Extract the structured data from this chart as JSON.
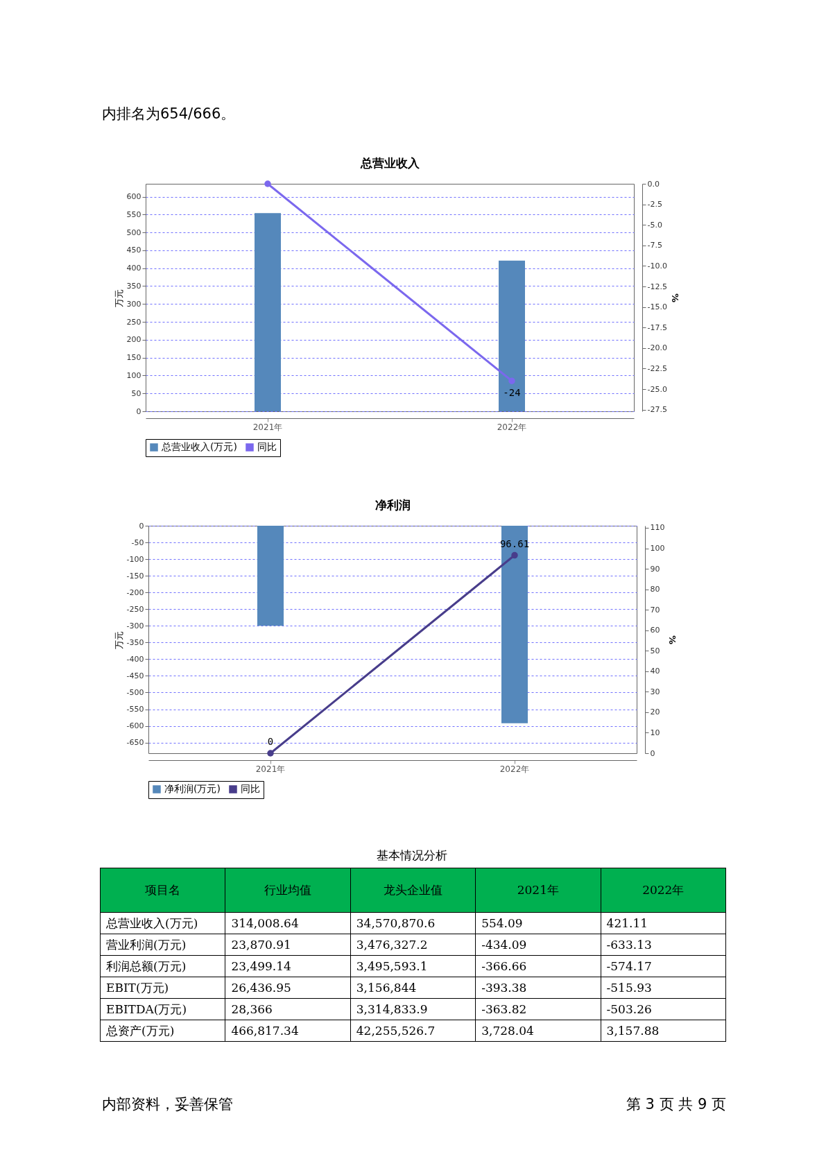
{
  "chart_data": [
    {
      "type": "bar",
      "title": "总营业收入",
      "ylabel": "万元",
      "y2label": "%",
      "categories": [
        "2021年",
        "2022年"
      ],
      "series": [
        {
          "name": "总营业收入(万元)",
          "type": "bar",
          "color": "#5588bb",
          "values": [
            554.09,
            421.11
          ]
        },
        {
          "name": "同比",
          "type": "line",
          "axis": "y2",
          "color": "#7b68ee",
          "values": [
            0,
            -24
          ],
          "value_labels": [
            null,
            "-24"
          ]
        }
      ],
      "ylim": [
        0,
        636
      ],
      "yticks": [
        0,
        50,
        100,
        150,
        200,
        250,
        300,
        350,
        400,
        450,
        500,
        550,
        600
      ],
      "y2lim": [
        -27.7,
        0
      ],
      "y2ticks": [
        {
          "value": 0,
          "label": "0.0"
        },
        -2.5,
        {
          "value": -5,
          "label": "-5.0"
        },
        -7.5,
        {
          "value": -10,
          "label": "-10.0"
        },
        -12.5,
        {
          "value": -15,
          "label": "-15.0"
        },
        -17.5,
        {
          "value": -20,
          "label": "-20.0"
        },
        -22.5,
        {
          "value": -25,
          "label": "-25.0"
        },
        -27.5
      ],
      "grid": "y",
      "legend": "bottom",
      "marker": "circle",
      "annotations": [
        "内排名为654/666。"
      ]
    },
    {
      "type": "bar",
      "title": "净利润",
      "ylabel": "万元",
      "y2label": "%",
      "categories": [
        "2021年",
        "2022年"
      ],
      "series": [
        {
          "name": "净利润(万元)",
          "type": "bar",
          "color": "#5588bb",
          "values": [
            -300,
            -592
          ]
        },
        {
          "name": "同比",
          "type": "line",
          "axis": "y2",
          "color": "#483d8b",
          "values": [
            0,
            96.61
          ],
          "value_labels": [
            "0",
            "96.61"
          ]
        }
      ],
      "ylim": [
        -682,
        0
      ],
      "yticks": [
        0,
        -50,
        -100,
        -150,
        -200,
        -250,
        -300,
        -350,
        -400,
        -450,
        -500,
        -550,
        -600,
        -650
      ],
      "y2lim": [
        0,
        111
      ],
      "y2ticks": [
        0,
        10,
        20,
        30,
        40,
        50,
        60,
        70,
        80,
        90,
        100,
        110
      ],
      "grid": "y",
      "legend": "bottom",
      "marker": "circle"
    },
    {
      "type": "other",
      "title": "基本情况分析",
      "categories": [
        "项目名",
        "行业均值",
        "龙头企业值",
        "2021年",
        "2022年"
      ],
      "y_categories": [
        "总营业收入(万元)",
        "营业利润(万元)",
        "利润总额(万元)",
        "EBIT(万元)",
        "EBITDA(万元)",
        "总资产(万元)"
      ],
      "cell_labels": [
        [
          "314,008.64",
          "34,570,870.6",
          "554.09",
          "421.11"
        ],
        [
          "23,870.91",
          "3,476,327.2",
          "-434.09",
          "-633.13"
        ],
        [
          "23,499.14",
          "3,495,593.1",
          "-366.66",
          "-574.17"
        ],
        [
          "26,436.95",
          "3,156,844",
          "-393.38",
          "-515.93"
        ],
        [
          "28,366",
          "3,314,833.9",
          "-363.82",
          "-503.26"
        ],
        [
          "466,817.34",
          "42,255,526.7",
          "3,728.04",
          "3,157.88"
        ]
      ],
      "annotations": [
        "内部资料，妥善保管",
        "第 3 页 共 9 页"
      ]
    }
  ]
}
